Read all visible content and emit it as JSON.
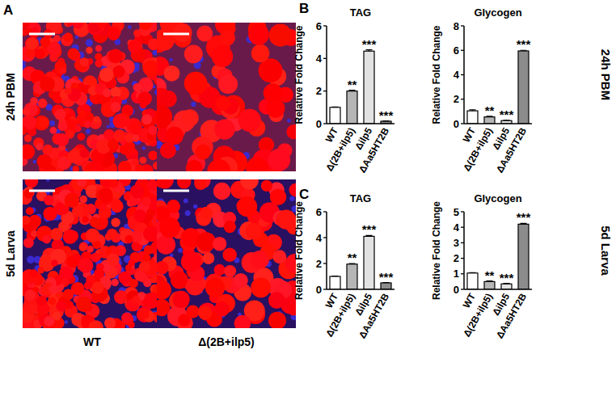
{
  "chart_data": [
    {
      "type": "bar",
      "title": "TAG",
      "y_label": "Relative Fold Change",
      "categories": [
        "WT",
        "Δ(2B+ilp5)",
        "Δilp5",
        "ΔAa5HT2B"
      ],
      "values": [
        1.0,
        2.0,
        4.45,
        0.15
      ],
      "errors": [
        0.03,
        0.05,
        0.08,
        0.02
      ],
      "colors": [
        "#ffffff",
        "#b5b5b5",
        "#e2e2e2",
        "#8c8c8c"
      ],
      "ylim": [
        0,
        6
      ],
      "yticks": [
        0,
        2,
        4,
        6
      ],
      "annotations": [
        {
          "x": "Δ(2B+ilp5)",
          "text": "**"
        },
        {
          "x": "Δilp5",
          "text": "***"
        },
        {
          "x": "ΔAa5HT2B",
          "text": "***"
        }
      ]
    },
    {
      "type": "bar",
      "title": "Glycogen",
      "y_label": "Relative Fold Change",
      "categories": [
        "WT",
        "Δ(2B+ilp5)",
        "Δilp5",
        "ΔAa5HT2B"
      ],
      "values": [
        1.05,
        0.55,
        0.25,
        5.95
      ],
      "errors": [
        0.08,
        0.05,
        0.03,
        0.05
      ],
      "colors": [
        "#ffffff",
        "#b5b5b5",
        "#e2e2e2",
        "#8c8c8c"
      ],
      "ylim": [
        0,
        8
      ],
      "yticks": [
        0,
        2,
        4,
        6,
        8
      ],
      "annotations": [
        {
          "x": "Δ(2B+ilp5)",
          "text": "**"
        },
        {
          "x": "Δilp5",
          "text": "***"
        },
        {
          "x": "ΔAa5HT2B",
          "text": "***"
        }
      ]
    },
    {
      "type": "bar",
      "title": "TAG",
      "y_label": "Relative Fold Change",
      "categories": [
        "WT",
        "Δ(2B+ilp5)",
        "Δilp5",
        "ΔAa5HT2B"
      ],
      "values": [
        1.0,
        1.95,
        4.1,
        0.5
      ],
      "errors": [
        0.03,
        0.05,
        0.06,
        0.03
      ],
      "colors": [
        "#ffffff",
        "#b5b5b5",
        "#e2e2e2",
        "#8c8c8c"
      ],
      "ylim": [
        0,
        6
      ],
      "yticks": [
        0,
        2,
        4,
        6
      ],
      "annotations": [
        {
          "x": "Δ(2B+ilp5)",
          "text": "**"
        },
        {
          "x": "Δilp5",
          "text": "***"
        },
        {
          "x": "ΔAa5HT2B",
          "text": "***"
        }
      ]
    },
    {
      "type": "bar",
      "title": "Glycogen",
      "y_label": "Relative Fold Change",
      "categories": [
        "WT",
        "Δ(2B+ilp5)",
        "Δilp5",
        "ΔAa5HT2B"
      ],
      "values": [
        1.05,
        0.5,
        0.35,
        4.2
      ],
      "errors": [
        0.03,
        0.04,
        0.03,
        0.05
      ],
      "colors": [
        "#ffffff",
        "#b5b5b5",
        "#e2e2e2",
        "#8c8c8c"
      ],
      "ylim": [
        0,
        5
      ],
      "yticks": [
        0,
        1,
        2,
        3,
        4,
        5
      ],
      "annotations": [
        {
          "x": "Δ(2B+ilp5)",
          "text": "**"
        },
        {
          "x": "Δilp5",
          "text": "***"
        },
        {
          "x": "ΔAa5HT2B",
          "text": "***"
        }
      ]
    }
  ],
  "figure": {
    "panel_labels": [
      "A",
      "B",
      "C"
    ],
    "image_rows": [
      "24h PBM",
      "5d Larva"
    ],
    "image_columns": [
      "WT",
      "Δ(2B+ilp5)"
    ],
    "chart_rows": [
      "24h PBM",
      "5d Larva"
    ]
  }
}
